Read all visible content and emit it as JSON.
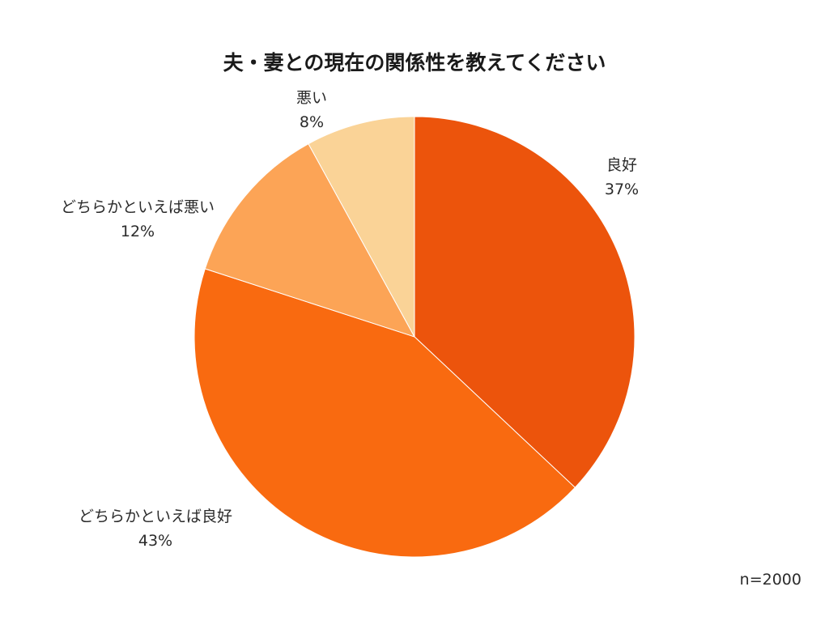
{
  "chart_data": {
    "type": "pie",
    "title": "夫・妻との現在の関係性を教えてください",
    "categories": [
      "良好",
      "どちらかといえば良好",
      "どちらかといえば悪い",
      "悪い"
    ],
    "values": [
      37,
      43,
      12,
      8
    ],
    "value_labels": [
      "37%",
      "43%",
      "12%",
      "8%"
    ],
    "colors": [
      "#EC540C",
      "#F96A10",
      "#FCA456",
      "#FAD397"
    ],
    "start": "12 o'clock",
    "direction": "clockwise",
    "note": "n=2000"
  }
}
